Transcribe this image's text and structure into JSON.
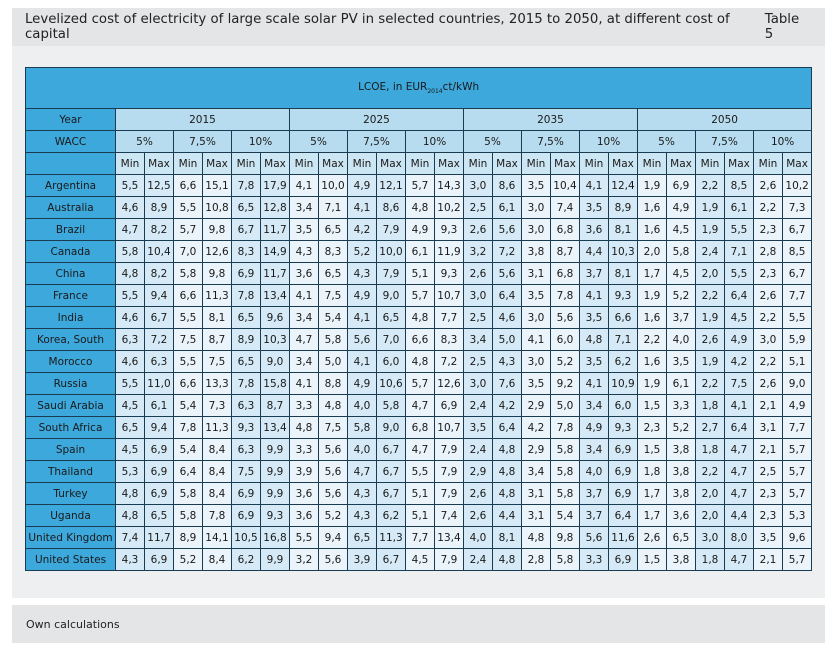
{
  "header": {
    "title": "Levelized cost of electricity of large scale solar PV in selected countries, 2015 to 2050, at different cost of capital",
    "table_label": "Table 5"
  },
  "table": {
    "caption_prefix": "LCOE, in EUR",
    "caption_sub": "2014",
    "caption_suffix": "ct/kWh",
    "year_label": "Year",
    "wacc_label": "WACC",
    "years": [
      "2015",
      "2025",
      "2035",
      "2050"
    ],
    "waccs": [
      "5%",
      "7,5%",
      "10%"
    ],
    "min_label": "Min",
    "max_label": "Max",
    "rows": [
      {
        "country": "Argentina",
        "values": [
          "5,5",
          "12,5",
          "6,6",
          "15,1",
          "7,8",
          "17,9",
          "4,1",
          "10,0",
          "4,9",
          "12,1",
          "5,7",
          "14,3",
          "3,0",
          "8,6",
          "3,5",
          "10,4",
          "4,1",
          "12,4",
          "1,9",
          "6,9",
          "2,2",
          "8,5",
          "2,6",
          "10,2"
        ]
      },
      {
        "country": "Australia",
        "values": [
          "4,6",
          "8,9",
          "5,5",
          "10,8",
          "6,5",
          "12,8",
          "3,4",
          "7,1",
          "4,1",
          "8,6",
          "4,8",
          "10,2",
          "2,5",
          "6,1",
          "3,0",
          "7,4",
          "3,5",
          "8,9",
          "1,6",
          "4,9",
          "1,9",
          "6,1",
          "2,2",
          "7,3"
        ]
      },
      {
        "country": "Brazil",
        "values": [
          "4,7",
          "8,2",
          "5,7",
          "9,8",
          "6,7",
          "11,7",
          "3,5",
          "6,5",
          "4,2",
          "7,9",
          "4,9",
          "9,3",
          "2,6",
          "5,6",
          "3,0",
          "6,8",
          "3,6",
          "8,1",
          "1,6",
          "4,5",
          "1,9",
          "5,5",
          "2,3",
          "6,7"
        ]
      },
      {
        "country": "Canada",
        "values": [
          "5,8",
          "10,4",
          "7,0",
          "12,6",
          "8,3",
          "14,9",
          "4,3",
          "8,3",
          "5,2",
          "10,0",
          "6,1",
          "11,9",
          "3,2",
          "7,2",
          "3,8",
          "8,7",
          "4,4",
          "10,3",
          "2,0",
          "5,8",
          "2,4",
          "7,1",
          "2,8",
          "8,5"
        ]
      },
      {
        "country": "China",
        "values": [
          "4,8",
          "8,2",
          "5,8",
          "9,8",
          "6,9",
          "11,7",
          "3,6",
          "6,5",
          "4,3",
          "7,9",
          "5,1",
          "9,3",
          "2,6",
          "5,6",
          "3,1",
          "6,8",
          "3,7",
          "8,1",
          "1,7",
          "4,5",
          "2,0",
          "5,5",
          "2,3",
          "6,7"
        ]
      },
      {
        "country": "France",
        "values": [
          "5,5",
          "9,4",
          "6,6",
          "11,3",
          "7,8",
          "13,4",
          "4,1",
          "7,5",
          "4,9",
          "9,0",
          "5,7",
          "10,7",
          "3,0",
          "6,4",
          "3,5",
          "7,8",
          "4,1",
          "9,3",
          "1,9",
          "5,2",
          "2,2",
          "6,4",
          "2,6",
          "7,7"
        ]
      },
      {
        "country": "India",
        "values": [
          "4,6",
          "6,7",
          "5,5",
          "8,1",
          "6,5",
          "9,6",
          "3,4",
          "5,4",
          "4,1",
          "6,5",
          "4,8",
          "7,7",
          "2,5",
          "4,6",
          "3,0",
          "5,6",
          "3,5",
          "6,6",
          "1,6",
          "3,7",
          "1,9",
          "4,5",
          "2,2",
          "5,5"
        ]
      },
      {
        "country": "Korea, South",
        "values": [
          "6,3",
          "7,2",
          "7,5",
          "8,7",
          "8,9",
          "10,3",
          "4,7",
          "5,8",
          "5,6",
          "7,0",
          "6,6",
          "8,3",
          "3,4",
          "5,0",
          "4,1",
          "6,0",
          "4,8",
          "7,1",
          "2,2",
          "4,0",
          "2,6",
          "4,9",
          "3,0",
          "5,9"
        ]
      },
      {
        "country": "Morocco",
        "values": [
          "4,6",
          "6,3",
          "5,5",
          "7,5",
          "6,5",
          "9,0",
          "3,4",
          "5,0",
          "4,1",
          "6,0",
          "4,8",
          "7,2",
          "2,5",
          "4,3",
          "3,0",
          "5,2",
          "3,5",
          "6,2",
          "1,6",
          "3,5",
          "1,9",
          "4,2",
          "2,2",
          "5,1"
        ]
      },
      {
        "country": "Russia",
        "values": [
          "5,5",
          "11,0",
          "6,6",
          "13,3",
          "7,8",
          "15,8",
          "4,1",
          "8,8",
          "4,9",
          "10,6",
          "5,7",
          "12,6",
          "3,0",
          "7,6",
          "3,5",
          "9,2",
          "4,1",
          "10,9",
          "1,9",
          "6,1",
          "2,2",
          "7,5",
          "2,6",
          "9,0"
        ]
      },
      {
        "country": "Saudi Arabia",
        "values": [
          "4,5",
          "6,1",
          "5,4",
          "7,3",
          "6,3",
          "8,7",
          "3,3",
          "4,8",
          "4,0",
          "5,8",
          "4,7",
          "6,9",
          "2,4",
          "4,2",
          "2,9",
          "5,0",
          "3,4",
          "6,0",
          "1,5",
          "3,3",
          "1,8",
          "4,1",
          "2,1",
          "4,9"
        ]
      },
      {
        "country": "South Africa",
        "values": [
          "6,5",
          "9,4",
          "7,8",
          "11,3",
          "9,3",
          "13,4",
          "4,8",
          "7,5",
          "5,8",
          "9,0",
          "6,8",
          "10,7",
          "3,5",
          "6,4",
          "4,2",
          "7,8",
          "4,9",
          "9,3",
          "2,3",
          "5,2",
          "2,7",
          "6,4",
          "3,1",
          "7,7"
        ]
      },
      {
        "country": "Spain",
        "values": [
          "4,5",
          "6,9",
          "5,4",
          "8,4",
          "6,3",
          "9,9",
          "3,3",
          "5,6",
          "4,0",
          "6,7",
          "4,7",
          "7,9",
          "2,4",
          "4,8",
          "2,9",
          "5,8",
          "3,4",
          "6,9",
          "1,5",
          "3,8",
          "1,8",
          "4,7",
          "2,1",
          "5,7"
        ]
      },
      {
        "country": "Thailand",
        "values": [
          "5,3",
          "6,9",
          "6,4",
          "8,4",
          "7,5",
          "9,9",
          "3,9",
          "5,6",
          "4,7",
          "6,7",
          "5,5",
          "7,9",
          "2,9",
          "4,8",
          "3,4",
          "5,8",
          "4,0",
          "6,9",
          "1,8",
          "3,8",
          "2,2",
          "4,7",
          "2,5",
          "5,7"
        ]
      },
      {
        "country": "Turkey",
        "values": [
          "4,8",
          "6,9",
          "5,8",
          "8,4",
          "6,9",
          "9,9",
          "3,6",
          "5,6",
          "4,3",
          "6,7",
          "5,1",
          "7,9",
          "2,6",
          "4,8",
          "3,1",
          "5,8",
          "3,7",
          "6,9",
          "1,7",
          "3,8",
          "2,0",
          "4,7",
          "2,3",
          "5,7"
        ]
      },
      {
        "country": "Uganda",
        "values": [
          "4,8",
          "6,5",
          "5,8",
          "7,8",
          "6,9",
          "9,3",
          "3,6",
          "5,2",
          "4,3",
          "6,2",
          "5,1",
          "7,4",
          "2,6",
          "4,4",
          "3,1",
          "5,4",
          "3,7",
          "6,4",
          "1,7",
          "3,6",
          "2,0",
          "4,4",
          "2,3",
          "5,3"
        ]
      },
      {
        "country": "United Kingdom",
        "values": [
          "7,4",
          "11,7",
          "8,9",
          "14,1",
          "10,5",
          "16,8",
          "5,5",
          "9,4",
          "6,5",
          "11,3",
          "7,7",
          "13,4",
          "4,0",
          "8,1",
          "4,8",
          "9,8",
          "5,6",
          "11,6",
          "2,6",
          "6,5",
          "3,0",
          "8,0",
          "3,5",
          "9,6"
        ]
      },
      {
        "country": "United States",
        "values": [
          "4,3",
          "6,9",
          "5,2",
          "8,4",
          "6,2",
          "9,9",
          "3,2",
          "5,6",
          "3,9",
          "6,7",
          "4,5",
          "7,9",
          "2,4",
          "4,8",
          "2,8",
          "5,8",
          "3,3",
          "6,9",
          "1,5",
          "3,8",
          "1,8",
          "4,7",
          "2,1",
          "5,7"
        ]
      }
    ]
  },
  "footer": {
    "source": "Own calculations"
  }
}
